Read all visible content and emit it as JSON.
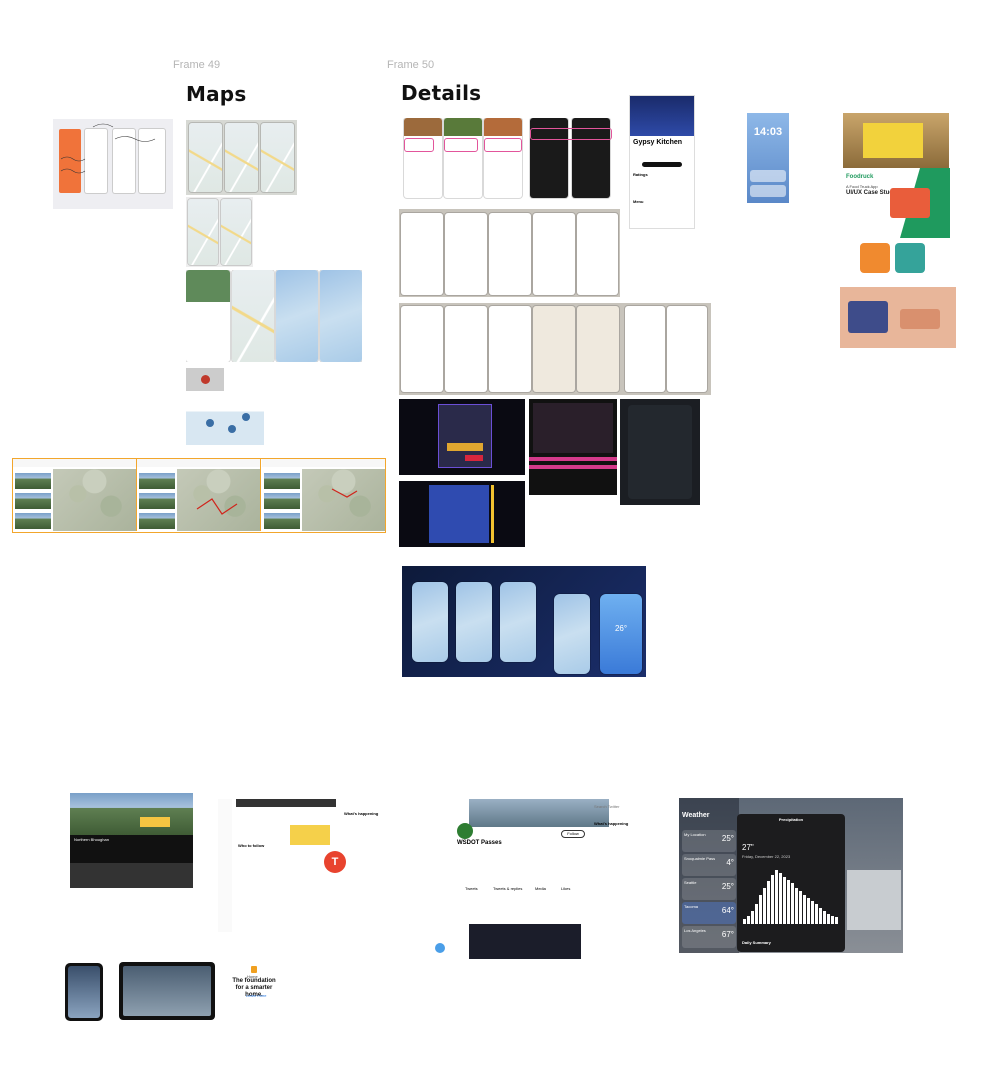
{
  "frames": [
    {
      "label": "Frame 49",
      "title": "Maps"
    },
    {
      "label": "Frame 50",
      "title": "Details"
    }
  ],
  "details": {
    "food_truck": {
      "name": "Gypsy Kitchen",
      "ratings_heading": "Ratings",
      "menu_heading": "Menu"
    },
    "lock_screen": {
      "time": "14:03"
    },
    "foodruck": {
      "brand": "Foodruck",
      "tagline": "A Food Truck App",
      "subtitle": "UI/UX Case Study"
    },
    "weather_widget": {
      "temp": "26°"
    }
  },
  "twitter": {
    "trends_heading": "What's happening",
    "profile_name": "WSDOT Passes",
    "follow_label": "Follow",
    "who_to_follow": "Who to follow",
    "badge_letter": "T",
    "search_placeholder": "Search Twitter",
    "tabs": [
      "Tweets",
      "Tweets & replies",
      "Media",
      "Likes"
    ]
  },
  "weather_app": {
    "title": "Weather",
    "modal_title": "Precipitation",
    "modal_value": "27\"",
    "modal_date": "Friday, December 22, 2023",
    "daily_summary": "Daily Summary",
    "cities": [
      {
        "name": "My Location",
        "temp": "25°"
      },
      {
        "name": "Snoqualmie Pass",
        "temp": "4°"
      },
      {
        "name": "Seattle",
        "temp": "25°"
      },
      {
        "name": "Tacoma",
        "temp": "64°"
      },
      {
        "name": "Los Angeles",
        "temp": "67°"
      }
    ]
  },
  "home_app": {
    "label": "Home",
    "headline": "The foundation for a smarter home.",
    "link": "Learn more"
  },
  "video_page": {
    "title": "Northern Bhoughan"
  },
  "chart_data": {
    "type": "bar",
    "title": "Precipitation",
    "values": [
      3,
      5,
      8,
      12,
      18,
      22,
      26,
      30,
      33,
      31,
      29,
      27,
      25,
      22,
      20,
      18,
      16,
      14,
      12,
      10,
      8,
      6,
      5,
      4
    ]
  }
}
